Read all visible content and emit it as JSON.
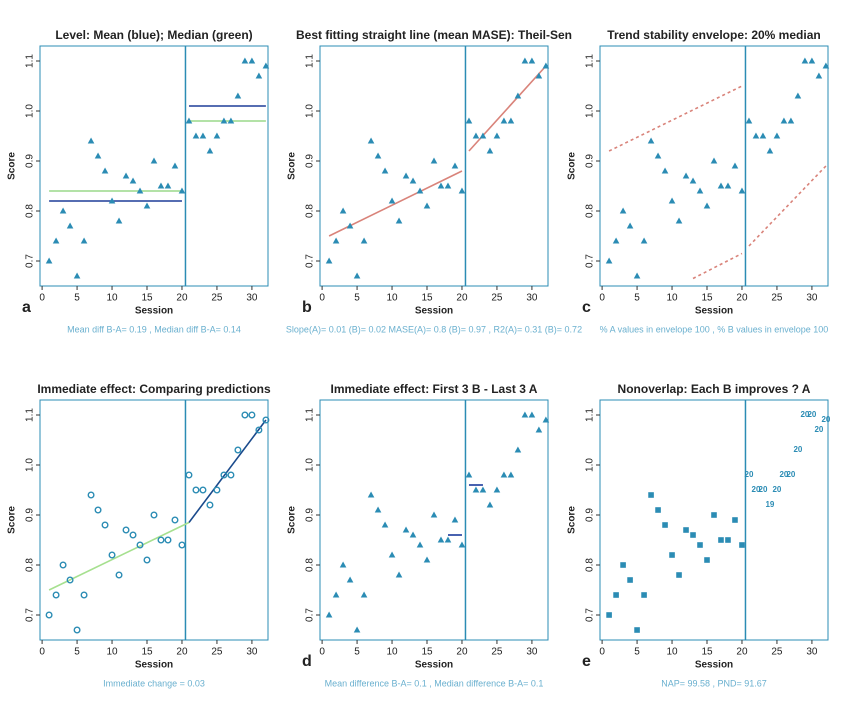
{
  "chart_data": [
    {
      "type": "scatter",
      "title": "Level: Mean (blue); Median (green)",
      "ylabel": "Score",
      "xlabel": "Session",
      "letter": "a",
      "caption": "Mean diff B-A= 0.19 , Median diff B-A= 0.14",
      "marker": "triangle",
      "color": "#2b8cb4",
      "phase_change": 20.5,
      "phase_color": "#2b8cb4",
      "x": [
        1,
        2,
        3,
        4,
        5,
        6,
        7,
        8,
        9,
        10,
        11,
        12,
        13,
        14,
        15,
        16,
        17,
        18,
        19,
        20,
        21,
        22,
        23,
        24,
        25,
        26,
        27,
        28,
        29,
        30,
        31,
        32
      ],
      "values": [
        0.7,
        0.74,
        0.8,
        0.77,
        0.67,
        0.74,
        0.94,
        0.91,
        0.88,
        0.82,
        0.78,
        0.87,
        0.86,
        0.84,
        0.81,
        0.9,
        0.85,
        0.85,
        0.89,
        0.84,
        0.98,
        0.95,
        0.95,
        0.92,
        0.95,
        0.98,
        0.98,
        1.03,
        1.1,
        1.1,
        1.07,
        1.09
      ],
      "xlim": [
        -0.3,
        32.3
      ],
      "ylim": [
        0.65,
        1.13
      ],
      "xticks": [
        0,
        5,
        10,
        15,
        20,
        25,
        30
      ],
      "yticks": [
        0.7,
        0.8,
        0.9,
        {
          "value": 1.0,
          "label": "1.0"
        },
        1.1
      ],
      "lines": [
        {
          "x": [
            1,
            20
          ],
          "values": [
            0.84,
            0.84
          ],
          "color": "#9ad98a",
          "dash": false
        },
        {
          "x": [
            1,
            20
          ],
          "values": [
            0.82,
            0.82
          ],
          "color": "#1f3d99",
          "dash": false
        },
        {
          "x": [
            21,
            32
          ],
          "values": [
            1.01,
            1.01
          ],
          "color": "#1f3d99",
          "dash": false
        },
        {
          "x": [
            21,
            32
          ],
          "values": [
            0.98,
            0.98
          ],
          "color": "#9ad98a",
          "dash": false
        }
      ]
    },
    {
      "type": "scatter",
      "title": "Best fitting straight line (mean MASE): Theil-Sen",
      "ylabel": "Score",
      "xlabel": "Session",
      "letter": "b",
      "caption": "Slope(A)= 0.01 (B)= 0.02 MASE(A)= 0.8 (B)= 0.97 , R2(A)= 0.31 (B)= 0.72",
      "marker": "triangle",
      "color": "#2b8cb4",
      "phase_change": 20.5,
      "phase_color": "#2b8cb4",
      "x": [
        1,
        2,
        3,
        4,
        5,
        6,
        7,
        8,
        9,
        10,
        11,
        12,
        13,
        14,
        15,
        16,
        17,
        18,
        19,
        20,
        21,
        22,
        23,
        24,
        25,
        26,
        27,
        28,
        29,
        30,
        31,
        32
      ],
      "values": [
        0.7,
        0.74,
        0.8,
        0.77,
        0.67,
        0.74,
        0.94,
        0.91,
        0.88,
        0.82,
        0.78,
        0.87,
        0.86,
        0.84,
        0.81,
        0.9,
        0.85,
        0.85,
        0.89,
        0.84,
        0.98,
        0.95,
        0.95,
        0.92,
        0.95,
        0.98,
        0.98,
        1.03,
        1.1,
        1.1,
        1.07,
        1.09
      ],
      "xlim": [
        -0.3,
        32.3
      ],
      "ylim": [
        0.65,
        1.13
      ],
      "xticks": [
        0,
        5,
        10,
        15,
        20,
        25,
        30
      ],
      "yticks": [
        0.7,
        0.8,
        0.9,
        {
          "value": 1.0,
          "label": "1.0"
        },
        1.1
      ],
      "lines": [
        {
          "x": [
            1,
            20
          ],
          "values": [
            0.75,
            0.88
          ],
          "color": "#d9837a",
          "dash": false
        },
        {
          "x": [
            21,
            32
          ],
          "values": [
            0.92,
            1.09
          ],
          "color": "#d9837a",
          "dash": false
        }
      ]
    },
    {
      "type": "scatter",
      "title": "Trend stability envelope: 20% median",
      "ylabel": "Score",
      "xlabel": "Session",
      "letter": "c",
      "caption": "% A values in envelope 100 , % B values in envelope 100",
      "marker": "triangle",
      "color": "#2b8cb4",
      "phase_change": 20.5,
      "phase_color": "#2b8cb4",
      "x": [
        1,
        2,
        3,
        4,
        5,
        6,
        7,
        8,
        9,
        10,
        11,
        12,
        13,
        14,
        15,
        16,
        17,
        18,
        19,
        20,
        21,
        22,
        23,
        24,
        25,
        26,
        27,
        28,
        29,
        30,
        31,
        32
      ],
      "values": [
        0.7,
        0.74,
        0.8,
        0.77,
        0.67,
        0.74,
        0.94,
        0.91,
        0.88,
        0.82,
        0.78,
        0.87,
        0.86,
        0.84,
        0.81,
        0.9,
        0.85,
        0.85,
        0.89,
        0.84,
        0.98,
        0.95,
        0.95,
        0.92,
        0.95,
        0.98,
        0.98,
        1.03,
        1.1,
        1.1,
        1.07,
        1.09
      ],
      "xlim": [
        -0.3,
        32.3
      ],
      "ylim": [
        0.65,
        1.13
      ],
      "xticks": [
        0,
        5,
        10,
        15,
        20,
        25,
        30
      ],
      "yticks": [
        0.7,
        0.8,
        0.9,
        {
          "value": 1.0,
          "label": "1.0"
        },
        1.1
      ],
      "lines": [
        {
          "x": [
            1,
            20
          ],
          "values": [
            0.92,
            1.05
          ],
          "color": "#d9837a",
          "dash": true
        },
        {
          "x": [
            13,
            20
          ],
          "values": [
            0.665,
            0.715
          ],
          "color": "#d9837a",
          "dash": true
        },
        {
          "x": [
            21,
            32
          ],
          "values": [
            0.73,
            0.89
          ],
          "color": "#d9837a",
          "dash": true
        }
      ]
    },
    {
      "type": "scatter",
      "title": "Immediate effect: Comparing predictions",
      "ylabel": "Score",
      "xlabel": "Session",
      "letter": null,
      "caption": "Immediate change = 0.03",
      "marker": "circle",
      "color": "#2b8cb4",
      "phase_change": 20.5,
      "phase_color": "#2b8cb4",
      "x": [
        1,
        2,
        3,
        4,
        5,
        6,
        7,
        8,
        9,
        10,
        11,
        12,
        13,
        14,
        15,
        16,
        17,
        18,
        19,
        20,
        21,
        22,
        23,
        24,
        25,
        26,
        27,
        28,
        29,
        30,
        31,
        32
      ],
      "values": [
        0.7,
        0.74,
        0.8,
        0.77,
        0.67,
        0.74,
        0.94,
        0.91,
        0.88,
        0.82,
        0.78,
        0.87,
        0.86,
        0.84,
        0.81,
        0.9,
        0.85,
        0.85,
        0.89,
        0.84,
        0.98,
        0.95,
        0.95,
        0.92,
        0.95,
        0.98,
        0.98,
        1.03,
        1.1,
        1.1,
        1.07,
        1.09
      ],
      "xlim": [
        -0.3,
        32.3
      ],
      "ylim": [
        0.65,
        1.13
      ],
      "xticks": [
        0,
        5,
        10,
        15,
        20,
        25,
        30
      ],
      "yticks": [
        0.7,
        0.8,
        0.9,
        {
          "value": 1.0,
          "label": "1.0"
        },
        1.1
      ],
      "lines": [
        {
          "x": [
            1,
            21
          ],
          "values": [
            0.75,
            0.885
          ],
          "color": "#a6e08f",
          "dash": false
        },
        {
          "x": [
            21,
            32
          ],
          "values": [
            0.885,
            1.09
          ],
          "color": "#1a4a8c",
          "dash": false
        }
      ]
    },
    {
      "type": "scatter",
      "title": "Immediate effect: First 3 B - Last 3 A",
      "ylabel": "Score",
      "xlabel": "Session",
      "letter": "d",
      "caption": "Mean difference B-A= 0.1 , Median difference B-A= 0.1",
      "marker": "triangle",
      "color": "#2b8cb4",
      "phase_change": 20.5,
      "phase_color": "#2b8cb4",
      "x": [
        1,
        2,
        3,
        4,
        5,
        6,
        7,
        8,
        9,
        10,
        11,
        12,
        13,
        14,
        15,
        16,
        17,
        18,
        19,
        20,
        21,
        22,
        23,
        24,
        25,
        26,
        27,
        28,
        29,
        30,
        31,
        32
      ],
      "values": [
        0.7,
        0.74,
        0.8,
        0.77,
        0.67,
        0.74,
        0.94,
        0.91,
        0.88,
        0.82,
        0.78,
        0.87,
        0.86,
        0.84,
        0.81,
        0.9,
        0.85,
        0.85,
        0.89,
        0.84,
        0.98,
        0.95,
        0.95,
        0.92,
        0.95,
        0.98,
        0.98,
        1.03,
        1.1,
        1.1,
        1.07,
        1.09
      ],
      "xlim": [
        -0.3,
        32.3
      ],
      "ylim": [
        0.65,
        1.13
      ],
      "xticks": [
        0,
        5,
        10,
        15,
        20,
        25,
        30
      ],
      "yticks": [
        0.7,
        0.8,
        0.9,
        {
          "value": 1.0,
          "label": "1.0"
        },
        1.1
      ],
      "lines": [
        {
          "x": [
            18,
            20
          ],
          "values": [
            0.86,
            0.86
          ],
          "color": "#1a3a9c",
          "dash": false
        },
        {
          "x": [
            21,
            23
          ],
          "values": [
            0.96,
            0.96
          ],
          "color": "#1a3a9c",
          "dash": false
        }
      ]
    },
    {
      "type": "scatter",
      "title": "Nonoverlap: Each B improves ? A",
      "ylabel": "Score",
      "xlabel": "Session",
      "letter": "e",
      "caption": "NAP= 99.58 , PND= 91.67",
      "marker": "square",
      "color": "#2b8cb4",
      "phase_change": 20.5,
      "phase_color": "#2b8cb4",
      "x": [
        1,
        2,
        3,
        4,
        5,
        6,
        7,
        8,
        9,
        10,
        11,
        12,
        13,
        14,
        15,
        16,
        17,
        18,
        19,
        20,
        21,
        22,
        23,
        24,
        25,
        26,
        27,
        28,
        29,
        30,
        31,
        32
      ],
      "values": [
        0.7,
        0.74,
        0.8,
        0.77,
        0.67,
        0.74,
        0.94,
        0.91,
        0.88,
        0.82,
        0.78,
        0.87,
        0.86,
        0.84,
        0.81,
        0.9,
        0.85,
        0.85,
        0.89,
        0.84,
        0.98,
        0.95,
        0.95,
        0.92,
        0.95,
        0.98,
        0.98,
        1.03,
        1.1,
        1.1,
        1.07,
        1.09
      ],
      "point_labels": [
        null,
        null,
        null,
        null,
        null,
        null,
        null,
        null,
        null,
        null,
        null,
        null,
        null,
        null,
        null,
        null,
        null,
        null,
        null,
        null,
        20,
        20,
        20,
        19,
        20,
        20,
        20,
        20,
        20,
        20,
        20,
        20
      ],
      "xlim": [
        -0.3,
        32.3
      ],
      "ylim": [
        0.65,
        1.13
      ],
      "xticks": [
        0,
        5,
        10,
        15,
        20,
        25,
        30
      ],
      "yticks": [
        0.7,
        0.8,
        0.9,
        {
          "value": 1.0,
          "label": "1.0"
        },
        1.1
      ],
      "lines": []
    }
  ]
}
